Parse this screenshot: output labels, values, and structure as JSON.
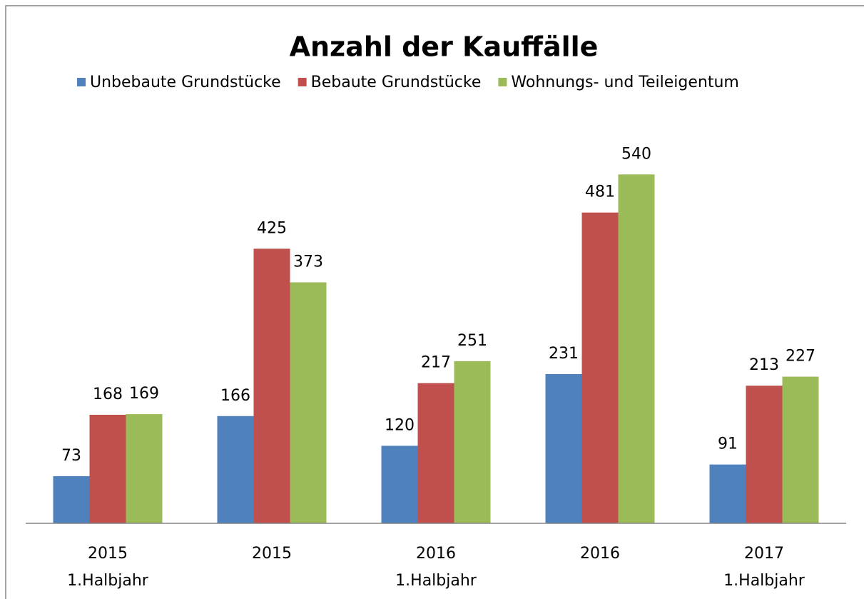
{
  "chart_data": {
    "type": "bar",
    "title": "Anzahl der Kauffälle",
    "categories": [
      [
        "2015",
        "1.Halbjahr"
      ],
      [
        "2015"
      ],
      [
        "2016",
        "1.Halbjahr"
      ],
      [
        "2016"
      ],
      [
        "2017",
        "1.Halbjahr"
      ]
    ],
    "series": [
      {
        "name": "Unbebaute Grundstücke",
        "color": "#4f81bd",
        "values": [
          73,
          166,
          120,
          231,
          91
        ]
      },
      {
        "name": "Bebaute Grundstücke",
        "color": "#c0504d",
        "values": [
          168,
          425,
          217,
          481,
          213
        ]
      },
      {
        "name": "Wohnungs- und Teileigentum",
        "color": "#9bbb59",
        "values": [
          169,
          373,
          251,
          540,
          227
        ]
      }
    ],
    "ylim": [
      0,
      600
    ],
    "legend": "top"
  }
}
